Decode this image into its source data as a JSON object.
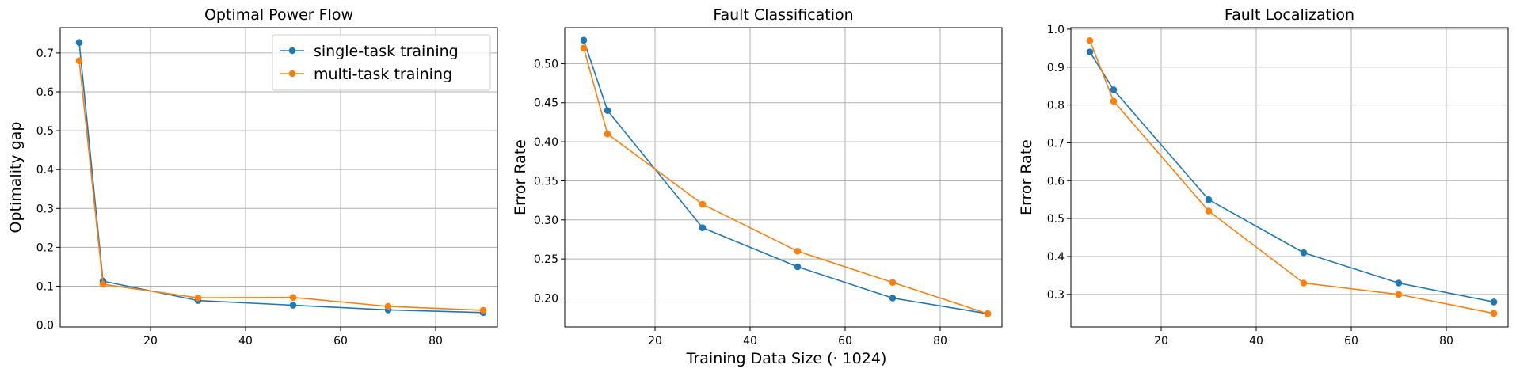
{
  "colors": {
    "single": "#1f77b4",
    "multi": "#ff7f0e"
  },
  "figure": {
    "shared_xlabel": "Training Data Size (· 1024)"
  },
  "chart_data": [
    {
      "type": "line",
      "title": "Optimal Power Flow",
      "xlabel": "",
      "ylabel": "Optimality gap",
      "xlim": [
        1,
        93
      ],
      "ylim": [
        -0.005,
        0.765
      ],
      "xticks": [
        20,
        40,
        60,
        80
      ],
      "yticks": [
        0.0,
        0.1,
        0.2,
        0.3,
        0.4,
        0.5,
        0.6,
        0.7
      ],
      "ytick_decimals": 1,
      "grid": true,
      "legend": "upper right",
      "x": [
        5,
        10,
        30,
        50,
        70,
        90
      ],
      "series": [
        {
          "name": "single-task training",
          "values": [
            0.727,
            0.113,
            0.063,
            0.051,
            0.039,
            0.032
          ]
        },
        {
          "name": "multi-task training",
          "values": [
            0.68,
            0.105,
            0.07,
            0.071,
            0.048,
            0.038
          ]
        }
      ]
    },
    {
      "type": "line",
      "title": "Fault Classification",
      "xlabel": "",
      "ylabel": "Error Rate",
      "xlim": [
        1,
        93
      ],
      "ylim": [
        0.163,
        0.546
      ],
      "xticks": [
        20,
        40,
        60,
        80
      ],
      "yticks": [
        0.2,
        0.25,
        0.3,
        0.35,
        0.4,
        0.45,
        0.5
      ],
      "ytick_decimals": 2,
      "grid": true,
      "legend": "none",
      "x": [
        5,
        10,
        30,
        50,
        70,
        90
      ],
      "series": [
        {
          "name": "single-task training",
          "values": [
            0.53,
            0.44,
            0.29,
            0.24,
            0.2,
            0.18
          ]
        },
        {
          "name": "multi-task training",
          "values": [
            0.52,
            0.41,
            0.32,
            0.26,
            0.22,
            0.18
          ]
        }
      ]
    },
    {
      "type": "line",
      "title": "Fault Localization",
      "xlabel": "",
      "ylabel": "Error Rate",
      "xlim": [
        1,
        93
      ],
      "ylim": [
        0.214,
        1.004
      ],
      "xticks": [
        20,
        40,
        60,
        80
      ],
      "yticks": [
        0.3,
        0.4,
        0.5,
        0.6,
        0.7,
        0.8,
        0.9,
        1.0
      ],
      "ytick_decimals": 1,
      "grid": true,
      "legend": "none",
      "x": [
        5,
        10,
        30,
        50,
        70,
        90
      ],
      "series": [
        {
          "name": "single-task training",
          "values": [
            0.94,
            0.84,
            0.55,
            0.41,
            0.33,
            0.28
          ]
        },
        {
          "name": "multi-task training",
          "values": [
            0.97,
            0.81,
            0.52,
            0.33,
            0.3,
            0.25
          ]
        }
      ]
    }
  ]
}
